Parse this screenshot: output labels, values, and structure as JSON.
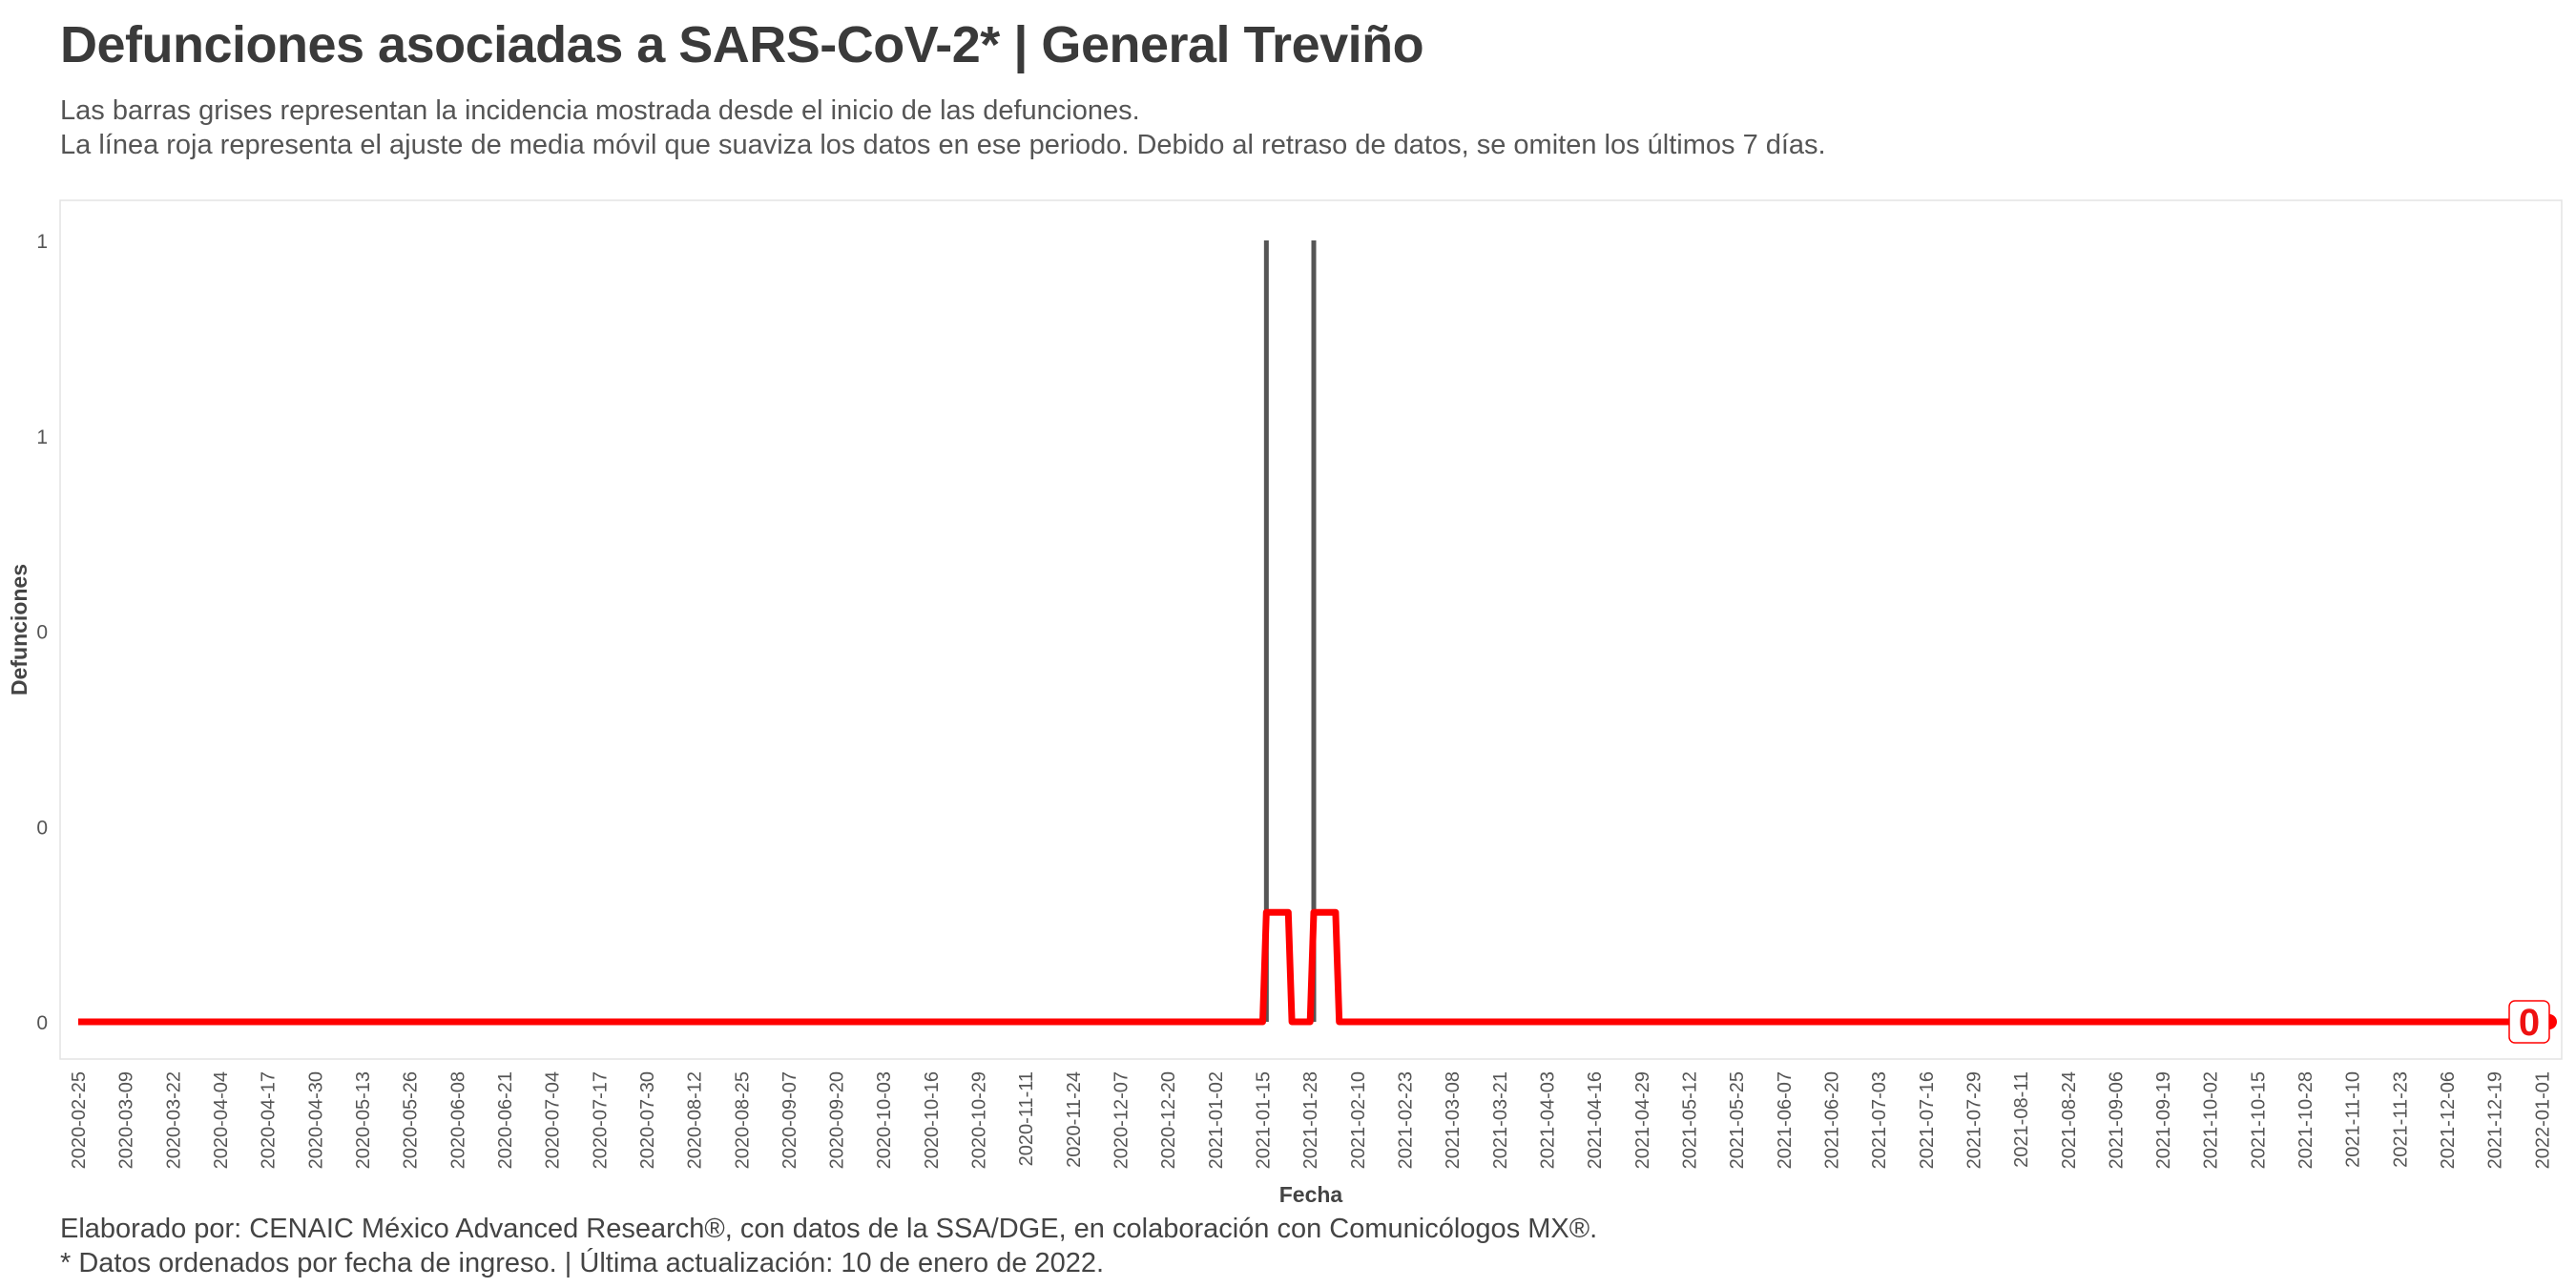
{
  "title": "Defunciones asociadas a SARS-CoV-2* | General Treviño",
  "subtitle": {
    "line1": "Las barras grises representan la incidencia mostrada desde el inicio de las defunciones.",
    "line2": "La línea roja representa el ajuste de media móvil que suaviza los datos en ese periodo. Debido al retraso de datos, se omiten los últimos 7 días."
  },
  "caption": {
    "line1": "Elaborado por: CENAIC México Advanced Research®, con datos de la SSA/DGE, en colaboración con Comunicólogos MX®.",
    "line2": "* Datos ordenados por fecha de ingreso. | Última actualización: 10 de enero de 2022."
  },
  "colors": {
    "bars": "#555555",
    "moving_average": "#ff0000",
    "panel_border": "#e3e3e3"
  },
  "chart_data": {
    "type": "bar",
    "x_start": "2020-02-25",
    "x_end": "2022-01-03",
    "xlabel": "Fecha",
    "ylabel": "Defunciones",
    "ylim": [
      0,
      1
    ],
    "y_ticks": [
      0,
      0.25,
      0.5,
      0.75,
      1
    ],
    "y_tick_labels": [
      "0",
      "0",
      "0",
      "1",
      "1"
    ],
    "x_tick_labels": [
      "2020-02-25",
      "2020-03-09",
      "2020-03-22",
      "2020-04-04",
      "2020-04-17",
      "2020-04-30",
      "2020-05-13",
      "2020-05-26",
      "2020-06-08",
      "2020-06-21",
      "2020-07-04",
      "2020-07-17",
      "2020-07-30",
      "2020-08-12",
      "2020-08-25",
      "2020-09-07",
      "2020-09-20",
      "2020-10-03",
      "2020-10-16",
      "2020-10-29",
      "2020-11-11",
      "2020-11-24",
      "2020-12-07",
      "2020-12-20",
      "2021-01-02",
      "2021-01-15",
      "2021-01-28",
      "2021-02-10",
      "2021-02-23",
      "2021-03-08",
      "2021-03-21",
      "2021-04-03",
      "2021-04-16",
      "2021-04-29",
      "2021-05-12",
      "2021-05-25",
      "2021-06-07",
      "2021-06-20",
      "2021-07-03",
      "2021-07-16",
      "2021-07-29",
      "2021-08-11",
      "2021-08-24",
      "2021-09-06",
      "2021-09-19",
      "2021-10-02",
      "2021-10-15",
      "2021-10-28",
      "2021-11-10",
      "2021-11-23",
      "2021-12-06",
      "2021-12-19",
      "2022-01-01"
    ],
    "bars": [
      {
        "date": "2021-01-16",
        "value": 1
      },
      {
        "date": "2021-01-29",
        "value": 1
      }
    ],
    "series": [
      {
        "name": "",
        "points": [
          [
            "2020-02-25",
            0
          ],
          [
            "2021-01-15",
            0
          ],
          [
            "2021-01-16",
            0.14
          ],
          [
            "2021-01-22",
            0.14
          ],
          [
            "2021-01-23",
            0
          ],
          [
            "2021-01-28",
            0
          ],
          [
            "2021-01-29",
            0.14
          ],
          [
            "2021-02-04",
            0.14
          ],
          [
            "2021-02-05",
            0
          ],
          [
            "2022-01-03",
            0
          ]
        ]
      }
    ],
    "last_value_label": "0",
    "grid": false
  }
}
